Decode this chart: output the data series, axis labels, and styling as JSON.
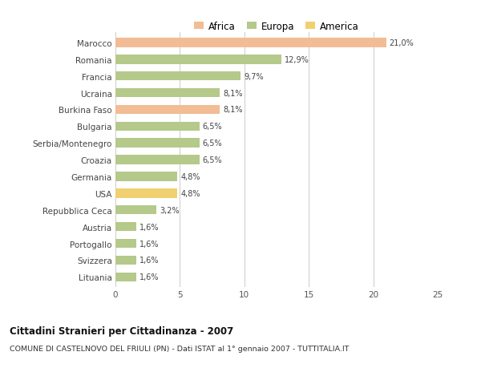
{
  "categories": [
    "Marocco",
    "Romania",
    "Francia",
    "Ucraina",
    "Burkina Faso",
    "Bulgaria",
    "Serbia/Montenegro",
    "Croazia",
    "Germania",
    "USA",
    "Repubblica Ceca",
    "Austria",
    "Portogallo",
    "Svizzera",
    "Lituania"
  ],
  "values": [
    21.0,
    12.9,
    9.7,
    8.1,
    8.1,
    6.5,
    6.5,
    6.5,
    4.8,
    4.8,
    3.2,
    1.6,
    1.6,
    1.6,
    1.6
  ],
  "labels": [
    "21,0%",
    "12,9%",
    "9,7%",
    "8,1%",
    "8,1%",
    "6,5%",
    "6,5%",
    "6,5%",
    "4,8%",
    "4,8%",
    "3,2%",
    "1,6%",
    "1,6%",
    "1,6%",
    "1,6%"
  ],
  "colors": [
    "#F2BC94",
    "#B5C98A",
    "#B5C98A",
    "#B5C98A",
    "#F2BC94",
    "#B5C98A",
    "#B5C98A",
    "#B5C98A",
    "#B5C98A",
    "#F0D070",
    "#B5C98A",
    "#B5C98A",
    "#B5C98A",
    "#B5C98A",
    "#B5C98A"
  ],
  "legend": [
    {
      "label": "Africa",
      "color": "#F2BC94"
    },
    {
      "label": "Europa",
      "color": "#B5C98A"
    },
    {
      "label": "America",
      "color": "#F0D070"
    }
  ],
  "xlim": [
    0,
    25
  ],
  "xticks": [
    0,
    5,
    10,
    15,
    20,
    25
  ],
  "title": "Cittadini Stranieri per Cittadinanza - 2007",
  "subtitle": "COMUNE DI CASTELNOVO DEL FRIULI (PN) - Dati ISTAT al 1° gennaio 2007 - TUTTITALIA.IT",
  "background_color": "#FFFFFF",
  "grid_color": "#CCCCCC",
  "bar_height": 0.55
}
